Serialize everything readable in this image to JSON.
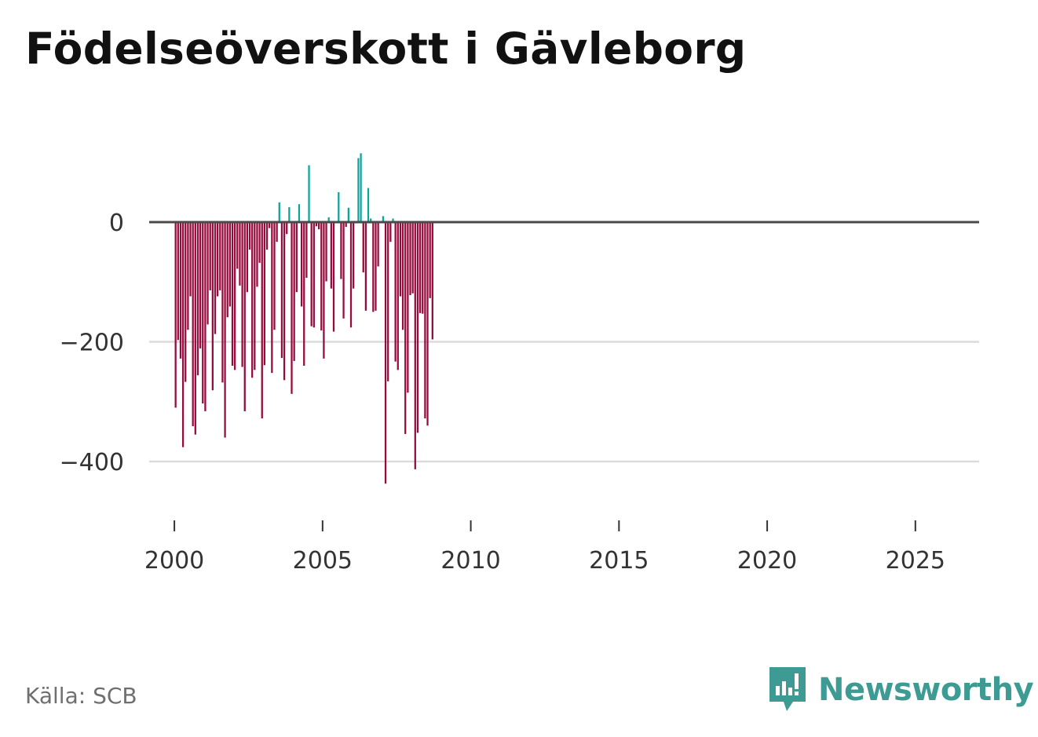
{
  "chart_data": {
    "type": "bar",
    "title": "Födelseöverskott i Gävleborg",
    "xlabel": "",
    "ylabel": "",
    "ylim": [
      -490,
      150
    ],
    "yticks": [
      0,
      -200,
      -400
    ],
    "ytick_labels": [
      "0",
      "−200",
      "−400"
    ],
    "xticks": [
      2000,
      2005,
      2010,
      2015,
      2020,
      2025
    ],
    "xtick_labels": [
      "2000",
      "2005",
      "2010",
      "2015",
      "2020",
      "2025"
    ],
    "xlim": [
      1999.15,
      2027.15
    ],
    "grid": true,
    "period": "monthly",
    "first_period": "2000-01",
    "positive_color": "#0fa39a",
    "negative_color": "#960a3c",
    "values": [
      -310,
      -197,
      -228,
      -376,
      -267,
      -180,
      -124,
      -341,
      -355,
      -256,
      -211,
      -303,
      -316,
      -171,
      -114,
      -281,
      -187,
      -124,
      -114,
      -268,
      -360,
      -159,
      -141,
      -240,
      -247,
      -78,
      -106,
      -242,
      -316,
      -117,
      -46,
      -260,
      -247,
      -108,
      -68,
      -328,
      -239,
      -46,
      -10,
      -252,
      -180,
      -33,
      33,
      -227,
      -264,
      -20,
      25,
      -287,
      -232,
      -117,
      30,
      -141,
      -240,
      -93,
      95,
      -174,
      -176,
      -7,
      -12,
      -181,
      -228,
      -99,
      8,
      -111,
      -183,
      -2,
      50,
      -95,
      -161,
      -8,
      24,
      -176,
      -111,
      -2,
      107,
      115,
      -84,
      -148,
      57,
      6,
      -150,
      -148,
      -74,
      -2,
      10,
      -437,
      -266,
      -33,
      6,
      -233,
      -247,
      -124,
      -180,
      -354,
      -285,
      -122,
      -119,
      -413,
      -352,
      -152,
      -153,
      -328,
      -340,
      -127,
      -196
    ]
  },
  "footer": {
    "source": "Källa: SCB",
    "brand": "Newsworthy"
  }
}
